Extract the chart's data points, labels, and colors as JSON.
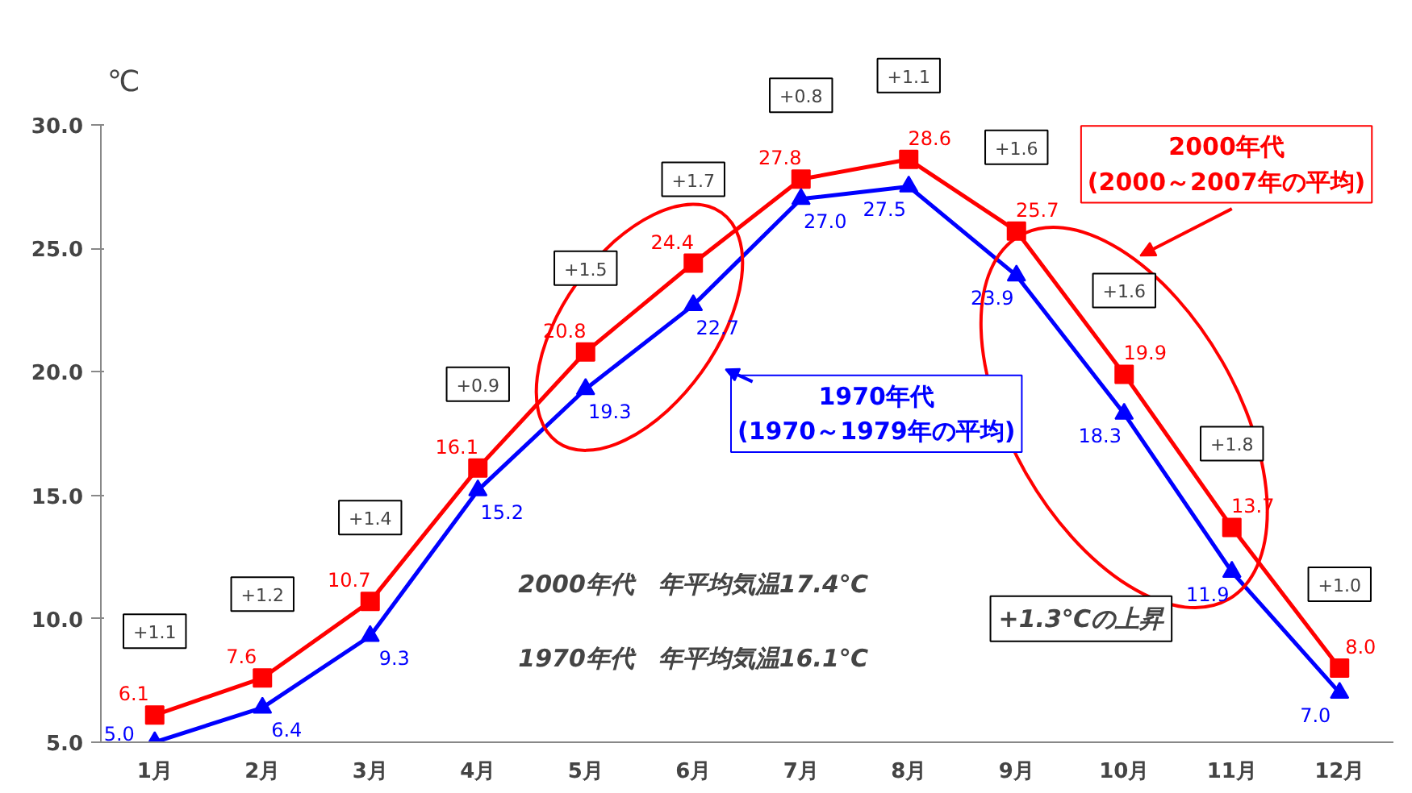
{
  "chart_data": {
    "type": "line",
    "ylabel": "℃",
    "categories": [
      "1月",
      "2月",
      "3月",
      "4月",
      "5月",
      "6月",
      "7月",
      "8月",
      "9月",
      "10月",
      "11月",
      "12月"
    ],
    "ylim": [
      5,
      30
    ],
    "yticks": [
      {
        "value": 5,
        "label": "5.0"
      },
      {
        "value": 10,
        "label": "10.0"
      },
      {
        "value": 15,
        "label": "15.0"
      },
      {
        "value": 20,
        "label": "20.0"
      },
      {
        "value": 25,
        "label": "25.0"
      },
      {
        "value": 30,
        "label": "30.0"
      }
    ],
    "series": [
      {
        "name": "2000年代\n(2000～2007年の平均)",
        "color": "#ff0000",
        "marker": "square",
        "values": [
          6.1,
          7.6,
          10.7,
          16.1,
          20.8,
          24.4,
          27.8,
          28.6,
          25.7,
          19.9,
          13.7,
          8.0
        ],
        "value_labels": [
          "6.1",
          "7.6",
          "10.7",
          "16.1",
          "20.8",
          "24.4",
          "27.8",
          "28.6",
          "25.7",
          "19.9",
          "13.7",
          "8.0"
        ]
      },
      {
        "name": "1970年代\n(1970～1979年の平均)",
        "color": "#0000ff",
        "marker": "triangle",
        "values": [
          5.0,
          6.4,
          9.3,
          15.2,
          19.3,
          22.7,
          27.0,
          27.5,
          23.9,
          18.3,
          11.9,
          7.0
        ],
        "value_labels": [
          "5.0",
          "6.4",
          "9.3",
          "15.2",
          "19.3",
          "22.7",
          "27.0",
          "27.5",
          "23.9",
          "18.3",
          "11.9",
          "7.0"
        ]
      }
    ],
    "grid": false,
    "legend": "top right",
    "data_labels": true,
    "annotations": [
      "+1.1",
      "+1.2",
      "+1.4",
      "+0.9",
      "+1.5",
      "+1.7",
      "+0.8",
      "+1.1",
      "+1.6",
      "+1.6",
      "+1.8",
      "+1.0",
      "2000年代　年平均気温17.4℃",
      "1970年代　年平均気温16.1℃",
      "+1.3℃の上昇"
    ]
  }
}
